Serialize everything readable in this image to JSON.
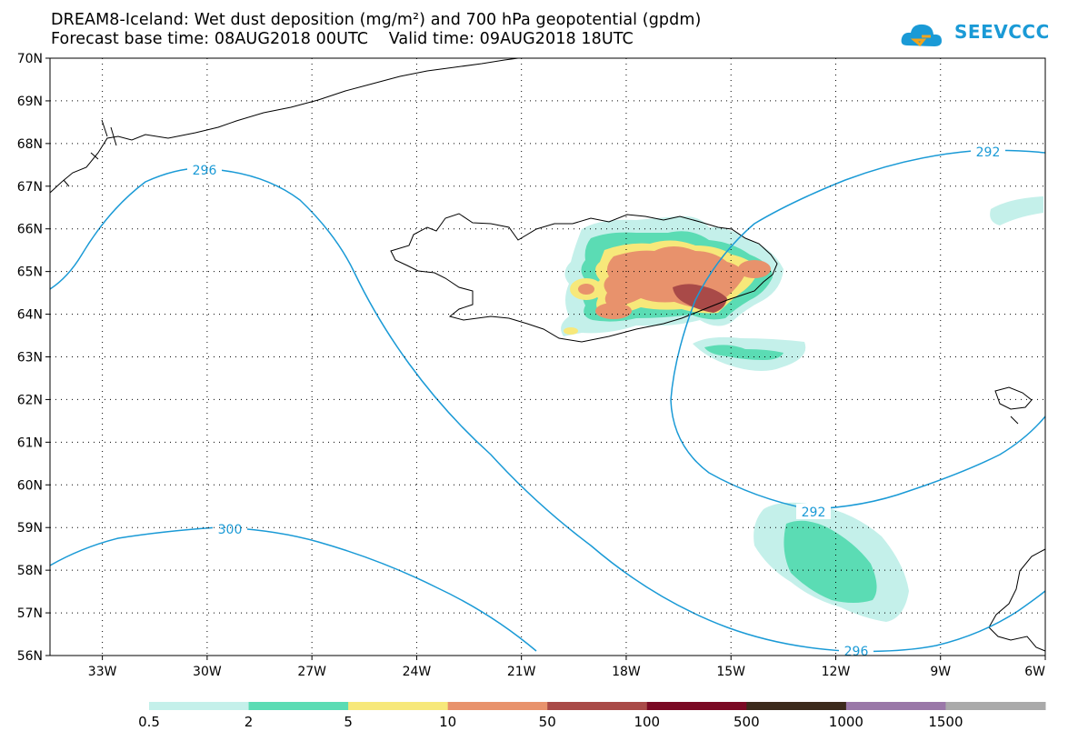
{
  "header": {
    "title_line1": "DREAM8-Iceland: Wet dust deposition (mg/m²) and 700 hPa geopotential (gpdm)",
    "base_time_label": "Forecast base time: 08AUG2018 00UTC",
    "valid_time_label": "Valid time: 09AUG2018 18UTC"
  },
  "logo": {
    "text": "SEEVCCC",
    "icon": "cloud-icon",
    "color": "#1a9ad6"
  },
  "map": {
    "lat_labels": [
      "70N",
      "69N",
      "68N",
      "67N",
      "66N",
      "65N",
      "64N",
      "63N",
      "62N",
      "61N",
      "60N",
      "59N",
      "58N",
      "57N",
      "56N"
    ],
    "lon_labels": [
      "33W",
      "30W",
      "27W",
      "24W",
      "21W",
      "18W",
      "15W",
      "12W",
      "9W",
      "6W"
    ],
    "contours": [
      {
        "value": "296",
        "label_text": "296"
      },
      {
        "value": "300",
        "label_text": "300"
      },
      {
        "value": "292",
        "label_text": "292"
      },
      {
        "value": "292",
        "label_text": "292"
      },
      {
        "value": "296",
        "label_text": "296"
      }
    ],
    "contour_color": "#1a9ad6"
  },
  "legend": {
    "labels": [
      "0.5",
      "2",
      "5",
      "10",
      "50",
      "100",
      "500",
      "1000",
      "1500"
    ],
    "colors": [
      "#c4f0ea",
      "#5bdcb4",
      "#f7e87a",
      "#e8926c",
      "#a94a48",
      "#7a0a24",
      "#3c2a1c",
      "#9a78a8",
      "#aaaaaa"
    ]
  }
}
